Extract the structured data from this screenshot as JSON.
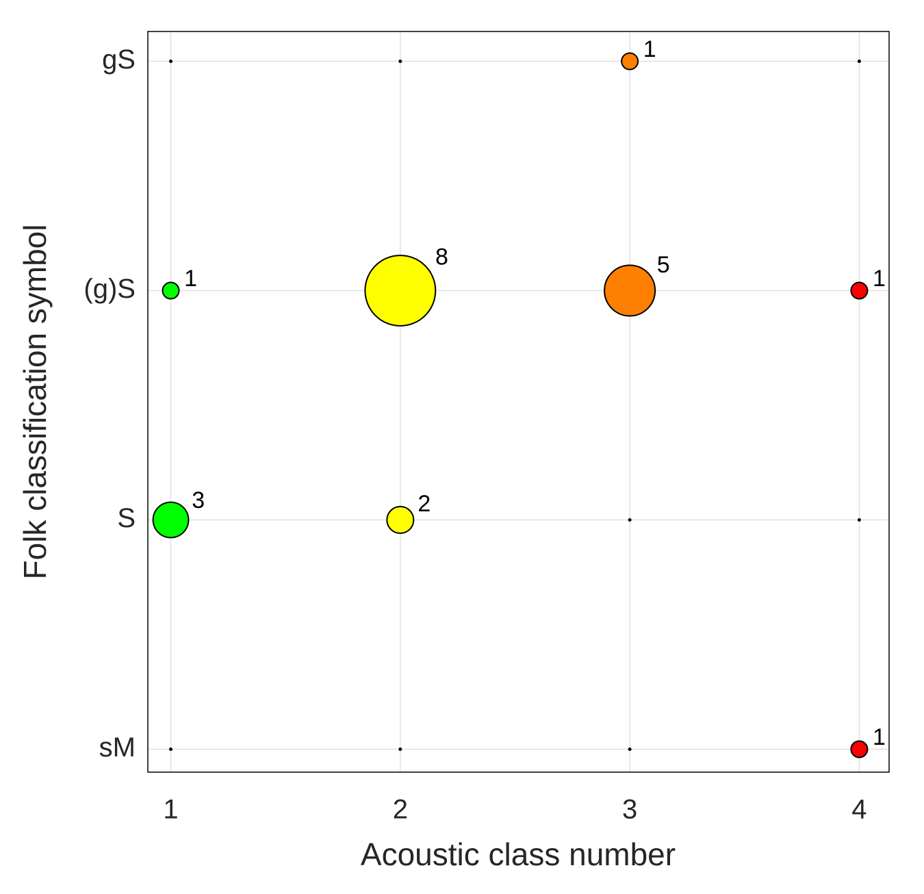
{
  "chart_data": {
    "type": "bubble",
    "xlabel": "Acoustic class number",
    "ylabel": "Folk classification symbol",
    "x": [
      1,
      1,
      1,
      1,
      2,
      2,
      2,
      2,
      3,
      3,
      3,
      3,
      4,
      4,
      4,
      4
    ],
    "y": [
      4,
      3,
      2,
      1,
      4,
      3,
      2,
      1,
      4,
      3,
      2,
      1,
      4,
      3,
      2,
      1
    ],
    "sizes": [
      0,
      1,
      3,
      0,
      0,
      8,
      2,
      0,
      1,
      5,
      0,
      0,
      0,
      1,
      0,
      1
    ],
    "colors": [
      "#00ff00",
      "#00ff00",
      "#00ff00",
      "#00ff00",
      "#ffff00",
      "#ffff00",
      "#ffff00",
      "#ffff00",
      "#ff8000",
      "#ff8000",
      "#ff8000",
      "#ff8000",
      "#ff0000",
      "#ff0000",
      "#ff0000",
      "#ff0000"
    ],
    "xlim": [
      0.9,
      4.13
    ],
    "ylim": [
      0.9,
      4.13
    ],
    "xticks": [
      1,
      2,
      3,
      4
    ],
    "yticks": [
      {
        "value": 1,
        "label": "sM"
      },
      {
        "value": 2,
        "label": "S"
      },
      {
        "value": 3,
        "label": "(g)S"
      },
      {
        "value": 4,
        "label": "gS"
      }
    ],
    "grid": true
  }
}
